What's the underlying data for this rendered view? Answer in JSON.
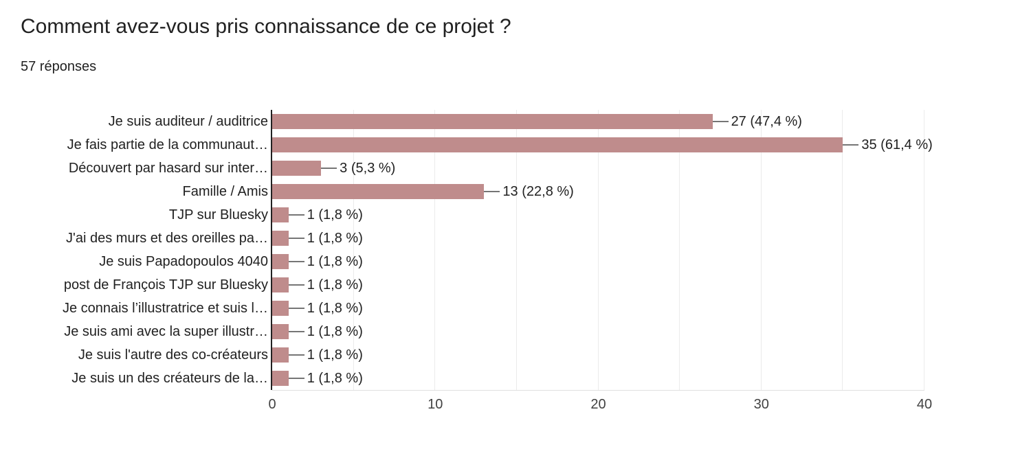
{
  "header": {
    "title": "Comment avez-vous pris connaissance de ce projet ?",
    "responses_count": "57 réponses"
  },
  "chart_data": {
    "type": "bar",
    "orientation": "horizontal",
    "title": "Comment avez-vous pris connaissance de ce projet ?",
    "subtitle": "57 réponses",
    "categories": [
      "Je suis auditeur / auditrice",
      "Je fais partie de la communaut…",
      "Découvert par hasard sur inter…",
      "Famille / Amis",
      "TJP sur Bluesky",
      "J'ai des murs et des oreilles pa…",
      "Je suis Papadopoulos 4040",
      "post de François TJP sur Bluesky",
      "Je connais l’illustratrice et suis l…",
      "Je suis ami avec la super illustr…",
      "Je suis l'autre des co-créateurs",
      "Je suis un des créateurs de la…"
    ],
    "values": [
      27,
      35,
      3,
      13,
      1,
      1,
      1,
      1,
      1,
      1,
      1,
      1
    ],
    "value_labels": [
      "27 (47,4 %)",
      "35 (61,4 %)",
      "3 (5,3 %)",
      "13 (22,8 %)",
      "1 (1,8 %)",
      "1 (1,8 %)",
      "1 (1,8 %)",
      "1 (1,8 %)",
      "1 (1,8 %)",
      "1 (1,8 %)",
      "1 (1,8 %)",
      "1 (1,8 %)"
    ],
    "xlim": [
      0,
      40
    ],
    "x_ticks": [
      0,
      10,
      20,
      30,
      40
    ],
    "gridline_step": 5,
    "grid_on": true,
    "legend": "none",
    "colors": {
      "bar": "#bf8c8c",
      "axis": "#212121",
      "gridline": "#ebebeb",
      "plot_border": "#e0e0e0",
      "leader_line": "#757575",
      "text": "#212121",
      "tick_text": "#424242"
    }
  }
}
